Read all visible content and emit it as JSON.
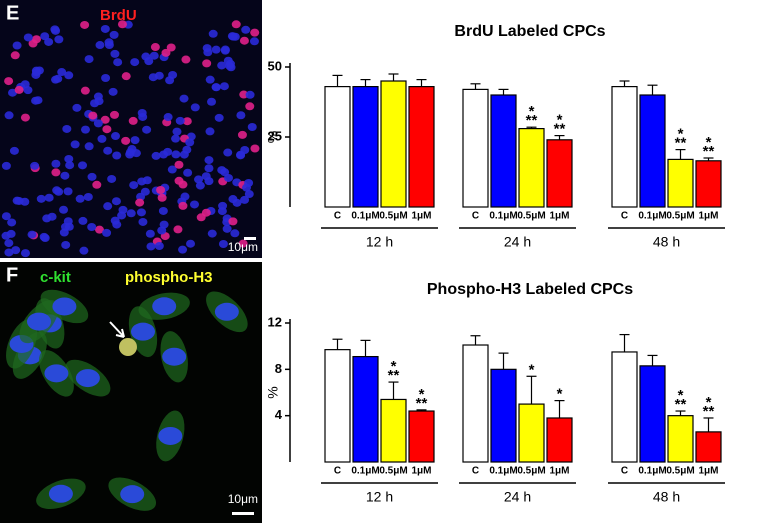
{
  "panels": [
    {
      "letter": "E",
      "stains": [
        "BrdU"
      ],
      "scale": "10μm"
    },
    {
      "letter": "F",
      "stains": [
        "c-kit",
        "phospho-H3"
      ],
      "scale": "10μm"
    }
  ],
  "chart_data": [
    {
      "type": "bar",
      "title": "BrdU Labeled CPCs",
      "y_label": "%",
      "categories": [
        "C",
        "0.1μM",
        "0.5μM",
        "1μM"
      ],
      "colors": [
        "#ffffff",
        "#0000ff",
        "#ffff00",
        "#ff0000"
      ],
      "ylim": [
        0,
        50
      ],
      "yticks": [
        25,
        50
      ],
      "series": [
        {
          "name": "12 h",
          "values": [
            43,
            43,
            45,
            43
          ],
          "errors": [
            4,
            2.5,
            2.5,
            2.5
          ],
          "marks": [
            null,
            null,
            null,
            null
          ]
        },
        {
          "name": "24 h",
          "values": [
            42,
            40,
            28,
            24
          ],
          "errors": [
            2,
            2,
            0.5,
            1.5
          ],
          "marks": [
            null,
            null,
            [
              "*",
              "**"
            ],
            [
              "*",
              "**"
            ]
          ]
        },
        {
          "name": "48 h",
          "values": [
            43,
            40,
            17,
            16.5
          ],
          "errors": [
            2,
            3.5,
            3.5,
            1
          ],
          "marks": [
            null,
            null,
            [
              "*",
              "**"
            ],
            [
              "*",
              "**"
            ]
          ]
        }
      ]
    },
    {
      "type": "bar",
      "title": "Phospho-H3 Labeled CPCs",
      "y_label": "%",
      "categories": [
        "C",
        "0.1μM",
        "0.5μM",
        "1μM"
      ],
      "colors": [
        "#ffffff",
        "#0000ff",
        "#ffff00",
        "#ff0000"
      ],
      "ylim": [
        0,
        12
      ],
      "yticks": [
        4,
        8,
        12
      ],
      "series": [
        {
          "name": "12 h",
          "values": [
            9.7,
            9.1,
            5.4,
            4.4
          ],
          "errors": [
            0.9,
            1.4,
            1.5,
            0.1
          ],
          "marks": [
            null,
            null,
            [
              "*",
              "**"
            ],
            [
              "*",
              "**"
            ]
          ]
        },
        {
          "name": "24 h",
          "values": [
            10.1,
            8.0,
            5.0,
            3.8
          ],
          "errors": [
            0.8,
            1.4,
            2.4,
            1.5
          ],
          "marks": [
            null,
            null,
            [
              "*"
            ],
            [
              "*"
            ]
          ]
        },
        {
          "name": "48 h",
          "values": [
            9.5,
            8.3,
            4.0,
            2.6
          ],
          "errors": [
            1.5,
            0.9,
            0.4,
            1.2
          ],
          "marks": [
            null,
            null,
            [
              "*",
              "**"
            ],
            [
              "*",
              "**"
            ]
          ]
        }
      ]
    }
  ]
}
